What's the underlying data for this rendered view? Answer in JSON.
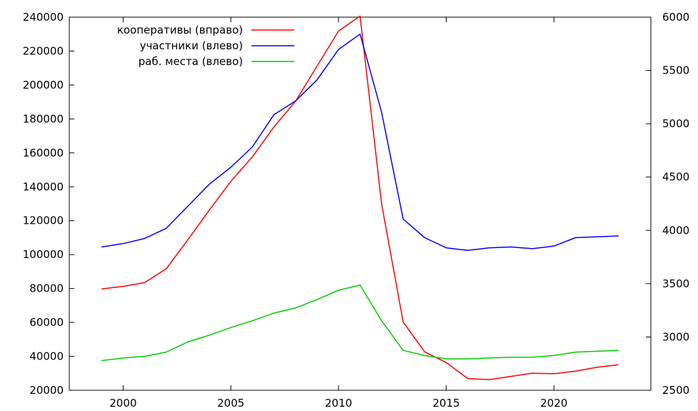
{
  "chart_data": {
    "type": "line",
    "x": [
      1999,
      2000,
      2001,
      2002,
      2003,
      2004,
      2005,
      2006,
      2007,
      2008,
      2009,
      2010,
      2011,
      2012,
      2013,
      2014,
      2015,
      2016,
      2017,
      2018,
      2019,
      2020,
      2021,
      2022,
      2023
    ],
    "xlim": [
      1997.5,
      2024.5
    ],
    "xticks": [
      2000,
      2005,
      2010,
      2015,
      2020
    ],
    "y_left": {
      "lim": [
        20000,
        240000
      ],
      "ticks": [
        20000,
        40000,
        60000,
        80000,
        100000,
        120000,
        140000,
        160000,
        180000,
        200000,
        220000,
        240000
      ]
    },
    "y_right": {
      "lim": [
        2500,
        6000
      ],
      "ticks": [
        2500,
        3000,
        3500,
        4000,
        4500,
        5000,
        5500,
        6000
      ]
    },
    "legend_position": "top-left",
    "grid": false,
    "series": [
      {
        "name": "кооперативы (вправо)",
        "axis": "right",
        "color": "#ff0000",
        "values": [
          3450,
          3475,
          3510,
          3640,
          3910,
          4190,
          4460,
          4690,
          4970,
          5210,
          5540,
          5870,
          6010,
          4250,
          3140,
          2860,
          2760,
          2610,
          2600,
          2630,
          2660,
          2655,
          2680,
          2715,
          2740
        ]
      },
      {
        "name": "участники (влево)",
        "axis": "left",
        "color": "#0000ff",
        "values": [
          104500,
          106500,
          109500,
          115500,
          128500,
          141500,
          151500,
          163500,
          182500,
          190500,
          203000,
          221000,
          230000,
          184000,
          121000,
          110000,
          104000,
          102500,
          104000,
          104500,
          103500,
          105000,
          110000,
          110500,
          111000
        ]
      },
      {
        "name": "раб. места (влево)",
        "axis": "left",
        "color": "#00cc00",
        "values": [
          37500,
          39000,
          40000,
          42500,
          48500,
          52500,
          57000,
          61000,
          65500,
          68500,
          73500,
          79000,
          82000,
          61000,
          43500,
          40500,
          38500,
          38500,
          39000,
          39500,
          39500,
          40500,
          42500,
          43000,
          43500
        ]
      }
    ]
  }
}
